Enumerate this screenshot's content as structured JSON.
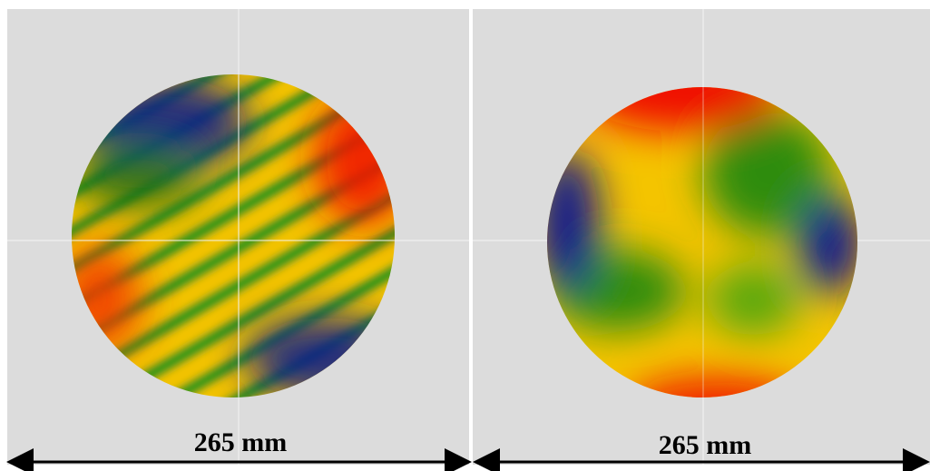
{
  "left_panel": {
    "label": "265 mm"
  },
  "right_panel": {
    "label": "265 mm"
  }
}
